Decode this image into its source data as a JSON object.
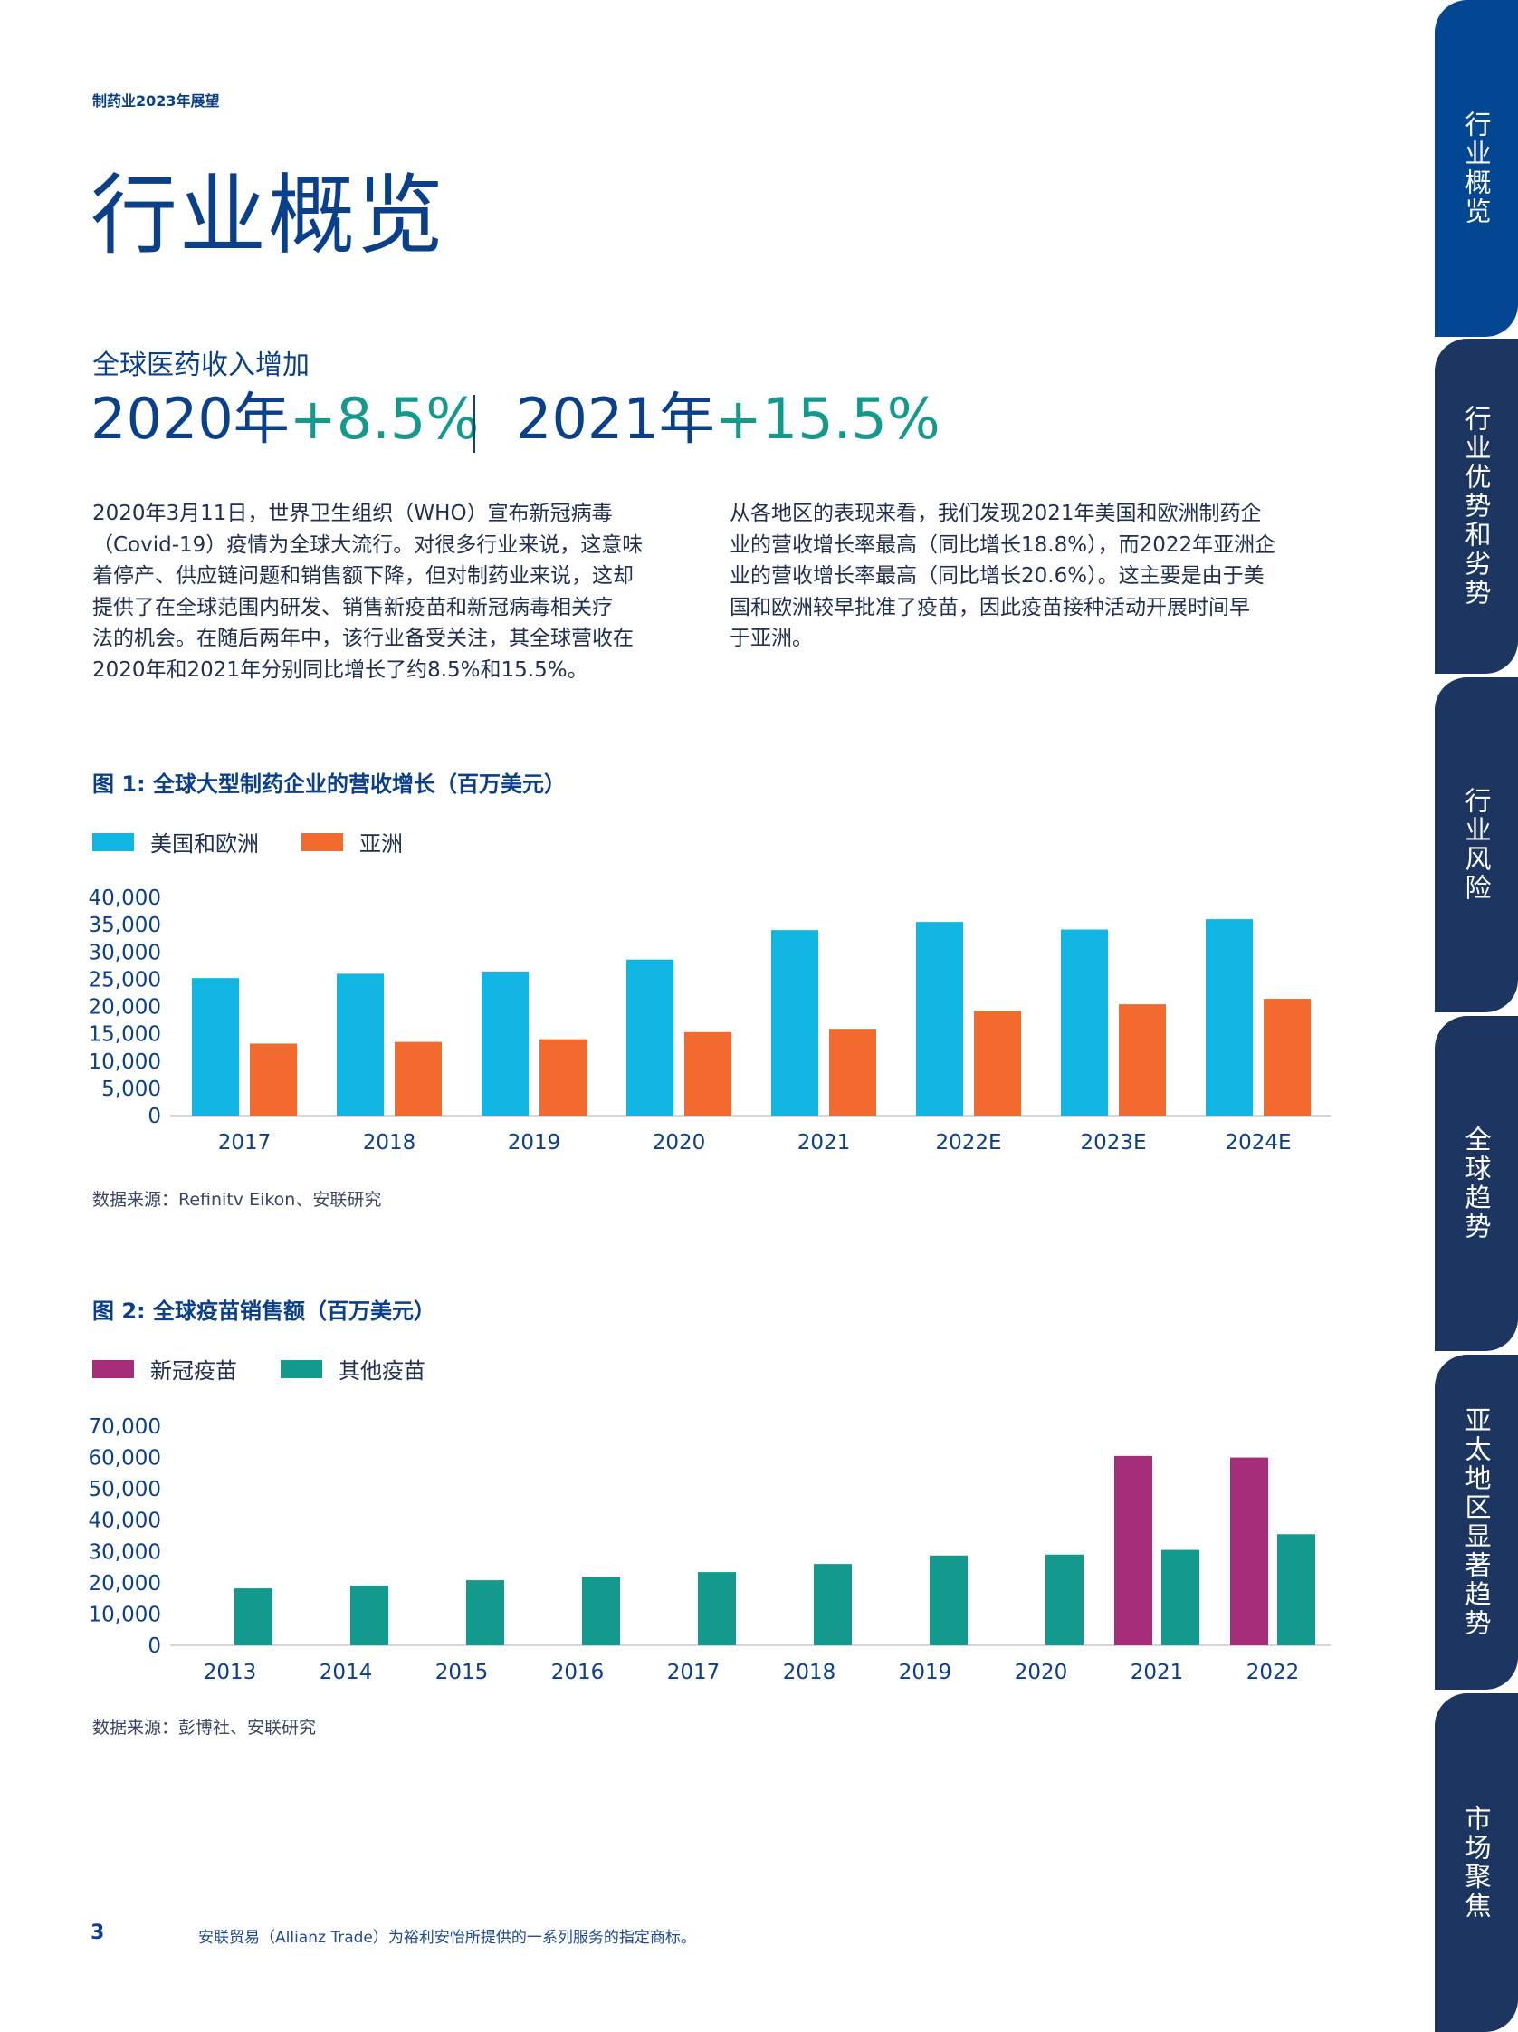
{
  "header": {
    "kicker": "制药业2023年展望",
    "title": "行业概览"
  },
  "highlights": {
    "subtitle": "全球医药收入增加",
    "stat1_year": "2020年",
    "stat1_value": "+8.5%",
    "stat2_year": "2021年",
    "stat2_value": "+15.5%"
  },
  "body": {
    "left_lines": [
      "2020年3月11日，世界卫生组织（WHO）宣布新冠病毒",
      "（Covid-19）疫情为全球大流行。对很多行业来说，这意味",
      "着停产、供应链问题和销售额下降，但对制药业来说，这却",
      "提供了在全球范围内研发、销售新疫苗和新冠病毒相关疗",
      "法的机会。在随后两年中，该行业备受关注，其全球营收在",
      "2020年和2021年分别同比增长了约8.5%和15.5%。"
    ],
    "right_lines": [
      "从各地区的表现来看，我们发现2021年美国和欧洲制药企",
      "业的营收增长率最高（同比增长18.8%），而2022年亚洲企",
      "业的营收增长率最高（同比增长20.6%）。这主要是由于美",
      "国和欧洲较早批准了疫苗，因此疫苗接种活动开展时间早",
      "于亚洲。"
    ]
  },
  "colors": {
    "brand": "#0a3f8a",
    "teal": "#149a8c",
    "cyan": "#12b6e3",
    "orange": "#f26a2e",
    "magenta": "#a62d7a",
    "tab_navy": "#1c3561",
    "tab_active": "#034692"
  },
  "figure1": {
    "title": "图 1: 全球大型制药企业的营收增长（百万美元）",
    "source": "数据来源：Refinitv Eikon、安联研究"
  },
  "figure2": {
    "title": "图 2: 全球疫苗销售额（百万美元）",
    "source": "数据来源：彭博社、安联研究"
  },
  "chart_data": [
    {
      "type": "bar",
      "title": "图 1: 全球大型制药企业的营收增长（百万美元）",
      "categories": [
        "2017",
        "2018",
        "2019",
        "2020",
        "2021",
        "2022E",
        "2023E",
        "2024E"
      ],
      "series": [
        {
          "name": "美国和欧洲",
          "color": "#12b6e3",
          "values": [
            25200,
            26000,
            26400,
            28600,
            34000,
            35500,
            34100,
            36000
          ]
        },
        {
          "name": "亚洲",
          "color": "#f26a2e",
          "values": [
            13200,
            13500,
            14000,
            15300,
            15900,
            19200,
            20400,
            21400
          ]
        }
      ],
      "yticks": [
        "0",
        "5,000",
        "10,000",
        "15,000",
        "20,000",
        "25,000",
        "30,000",
        "35,000",
        "40,000"
      ],
      "ylim": [
        0,
        40000
      ],
      "xlabel": "",
      "ylabel": "",
      "legend": "top-left"
    },
    {
      "type": "bar",
      "title": "图 2: 全球疫苗销售额（百万美元）",
      "categories": [
        "2013",
        "2014",
        "2015",
        "2016",
        "2017",
        "2018",
        "2019",
        "2020",
        "2021",
        "2022"
      ],
      "series": [
        {
          "name": "新冠疫苗",
          "color": "#a62d7a",
          "values": [
            0,
            0,
            0,
            0,
            0,
            0,
            0,
            0,
            60500,
            60000
          ]
        },
        {
          "name": "其他疫苗",
          "color": "#149a8c",
          "values": [
            18200,
            19100,
            20800,
            21900,
            23400,
            26000,
            28700,
            29000,
            30500,
            35500
          ]
        }
      ],
      "yticks": [
        "0",
        "10,000",
        "20,000",
        "30,000",
        "40,000",
        "50,000",
        "60,000",
        "70,000"
      ],
      "ylim": [
        0,
        70000
      ],
      "xlabel": "",
      "ylabel": "",
      "legend": "top-left"
    }
  ],
  "tabs": [
    {
      "label": "行业概览",
      "active": true
    },
    {
      "label": "行业优势和劣势",
      "active": false
    },
    {
      "label": "行业风险",
      "active": false
    },
    {
      "label": "全球趋势",
      "active": false
    },
    {
      "label": "亚太地区显著趋势",
      "active": false
    },
    {
      "label": "市场聚焦",
      "active": false
    }
  ],
  "footer": {
    "page_number": "3",
    "note": "安联贸易（Allianz Trade）为裕利安怡所提供的一系列服务的指定商标。"
  }
}
